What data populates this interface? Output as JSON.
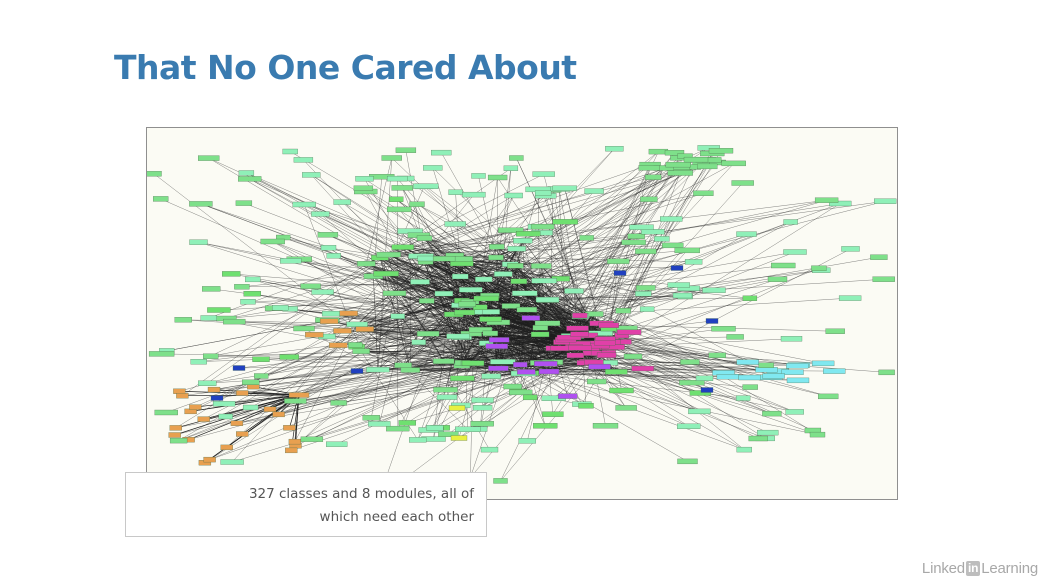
{
  "slide": {
    "title": "That No One Cared About",
    "caption_line1": "327 classes and 8 modules, all of",
    "caption_line2": "which need each other"
  },
  "watermark": {
    "part1": "Linked",
    "part2": "in",
    "part3": "Learning"
  },
  "diagram": {
    "module_colors": {
      "green": "#7ee08a",
      "lime": "#6fe070",
      "mint": "#8ff0b8",
      "pink": "#e040a8",
      "purple": "#b050f0",
      "orange": "#e8a050",
      "cyan": "#80e8f0",
      "blue": "#2040c0",
      "yellow": "#e8f040"
    },
    "edge_color": "#202020",
    "frame_background": "#fbfbf4"
  }
}
